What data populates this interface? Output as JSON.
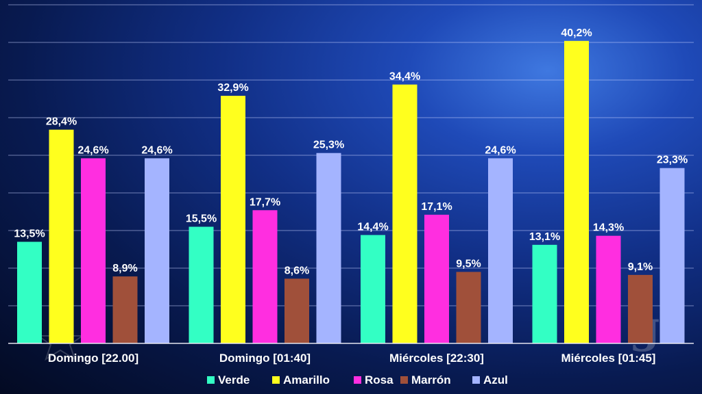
{
  "chart_data": {
    "type": "bar",
    "categories": [
      "Domingo [22.00]",
      "Domingo [01:40]",
      "Miércoles [22:30]",
      "Miércoles [01:45]"
    ],
    "series": [
      {
        "name": "Verde",
        "color": "#33ffc4",
        "values": [
          13.5,
          15.5,
          14.4,
          13.1
        ],
        "labels": [
          "13,5%",
          "15,5%",
          "14,4%",
          "13,1%"
        ]
      },
      {
        "name": "Amarillo",
        "color": "#ffff1e",
        "values": [
          28.4,
          32.9,
          34.4,
          40.2
        ],
        "labels": [
          "28,4%",
          "32,9%",
          "34,4%",
          "40,2%"
        ]
      },
      {
        "name": "Rosa",
        "color": "#ff2ee0",
        "values": [
          24.6,
          17.7,
          17.1,
          14.3
        ],
        "labels": [
          "24,6%",
          "17,7%",
          "17,1%",
          "14,3%"
        ]
      },
      {
        "name": "Marrón",
        "color": "#a0503a",
        "values": [
          8.9,
          8.6,
          9.5,
          9.1
        ],
        "labels": [
          "8,9%",
          "8,6%",
          "9,5%",
          "9,1%"
        ]
      },
      {
        "name": "Azul",
        "color": "#a4b4ff",
        "values": [
          24.6,
          25.3,
          24.6,
          23.3
        ],
        "labels": [
          "24,6%",
          "25,3%",
          "24,6%",
          "23,3%"
        ]
      }
    ],
    "ylim": [
      0,
      45
    ],
    "grid": true,
    "legend_position": "bottom"
  }
}
